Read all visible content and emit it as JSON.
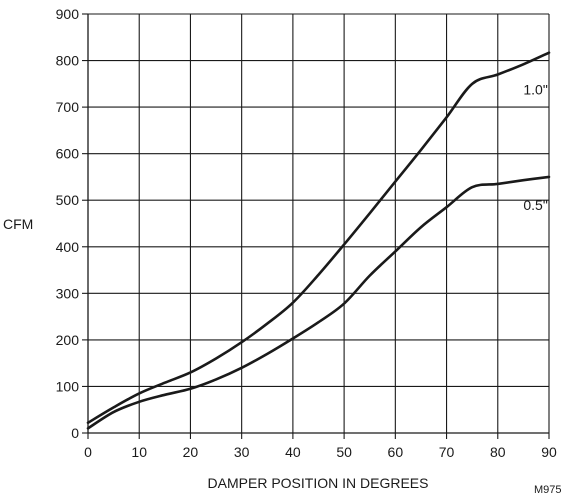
{
  "chart_data": {
    "type": "line",
    "title": "",
    "xlabel": "DAMPER POSITION IN DEGREES",
    "ylabel": "CFM",
    "xlim": [
      0,
      90
    ],
    "ylim": [
      0,
      900
    ],
    "xticks": [
      0,
      10,
      20,
      30,
      40,
      50,
      60,
      70,
      80,
      90
    ],
    "yticks": [
      0,
      100,
      200,
      300,
      400,
      500,
      600,
      700,
      800,
      900
    ],
    "grid": true,
    "legend": "none",
    "series": [
      {
        "name": "1.0\"",
        "x": [
          0,
          5,
          10,
          15,
          20,
          25,
          30,
          35,
          40,
          45,
          50,
          55,
          60,
          65,
          70,
          75,
          80,
          85,
          90
        ],
        "y": [
          22,
          55,
          85,
          108,
          130,
          160,
          195,
          235,
          280,
          340,
          405,
          472,
          540,
          608,
          678,
          750,
          770,
          792,
          817
        ]
      },
      {
        "name": "0.5\"",
        "x": [
          0,
          5,
          10,
          15,
          20,
          25,
          30,
          35,
          40,
          45,
          50,
          55,
          60,
          65,
          70,
          75,
          80,
          85,
          90
        ],
        "y": [
          10,
          45,
          67,
          82,
          95,
          115,
          140,
          170,
          203,
          238,
          278,
          338,
          390,
          442,
          485,
          528,
          535,
          543,
          550
        ]
      }
    ],
    "figure_id": "M975"
  }
}
